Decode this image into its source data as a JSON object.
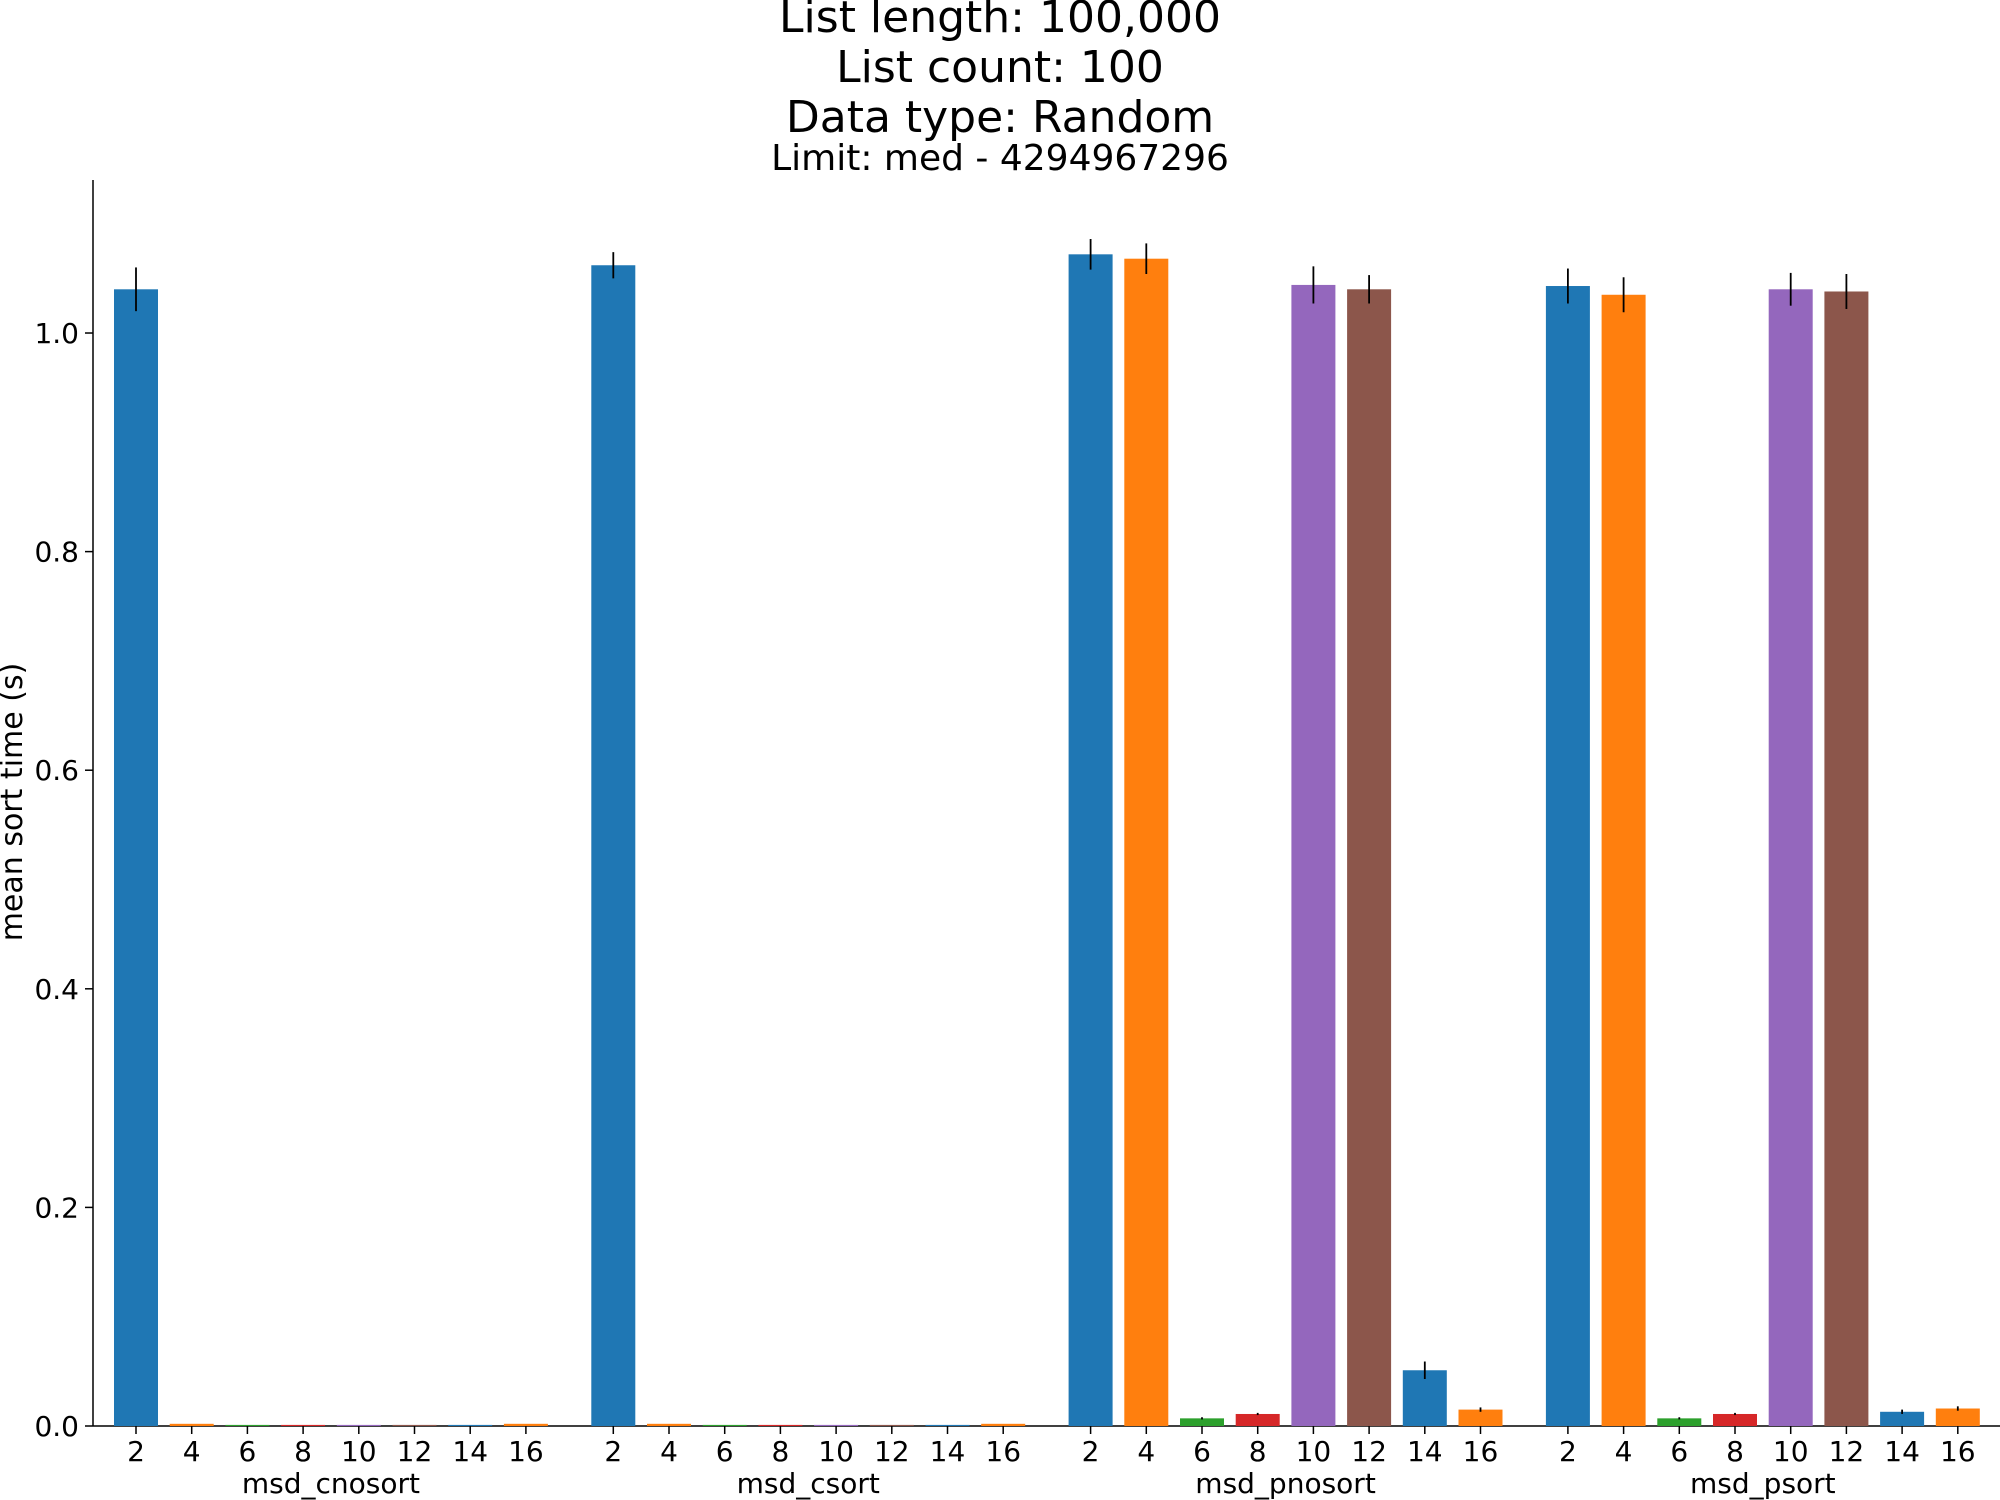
{
  "chart_data": {
    "type": "bar",
    "title_lines": [
      "List length: 100,000",
      "List count: 100",
      "Data type: Random"
    ],
    "subtitle": "Limit: med -  4294967296",
    "xlabel": "",
    "ylabel": "mean sort time (s)",
    "ylim": [
      0,
      1.14
    ],
    "yticks": [
      "0.0",
      "0.2",
      "0.4",
      "0.6",
      "0.8",
      "1.0"
    ],
    "grid": false,
    "legend": "none",
    "colors": [
      "#1f77b4",
      "#ff7f0e",
      "#2ca02c",
      "#d62728",
      "#9467bd",
      "#8c564b",
      "#1f77b4",
      "#ff7f0e"
    ],
    "categories": [
      "2",
      "4",
      "6",
      "8",
      "10",
      "12",
      "14",
      "16"
    ],
    "groups": [
      {
        "name": "msd_cnosort",
        "values": [
          1.04,
          0.002,
          0.001,
          0.001,
          0.001,
          0.001,
          0.001,
          0.002
        ],
        "errors": [
          0.02,
          0,
          0,
          0,
          0,
          0,
          0,
          0
        ]
      },
      {
        "name": "msd_csort",
        "values": [
          1.062,
          0.002,
          0.001,
          0.001,
          0.001,
          0.001,
          0.001,
          0.002
        ],
        "errors": [
          0.012,
          0,
          0,
          0,
          0,
          0,
          0,
          0
        ]
      },
      {
        "name": "msd_pnosort",
        "values": [
          1.072,
          1.068,
          0.007,
          0.011,
          1.044,
          1.04,
          0.051,
          0.015
        ],
        "errors": [
          0.014,
          0.014,
          0.001,
          0.001,
          0.017,
          0.013,
          0.008,
          0.002
        ]
      },
      {
        "name": "msd_psort",
        "values": [
          1.043,
          1.035,
          0.007,
          0.011,
          1.04,
          1.038,
          0.013,
          0.016
        ],
        "errors": [
          0.016,
          0.016,
          0.001,
          0.001,
          0.015,
          0.016,
          0.002,
          0.002
        ]
      }
    ]
  }
}
